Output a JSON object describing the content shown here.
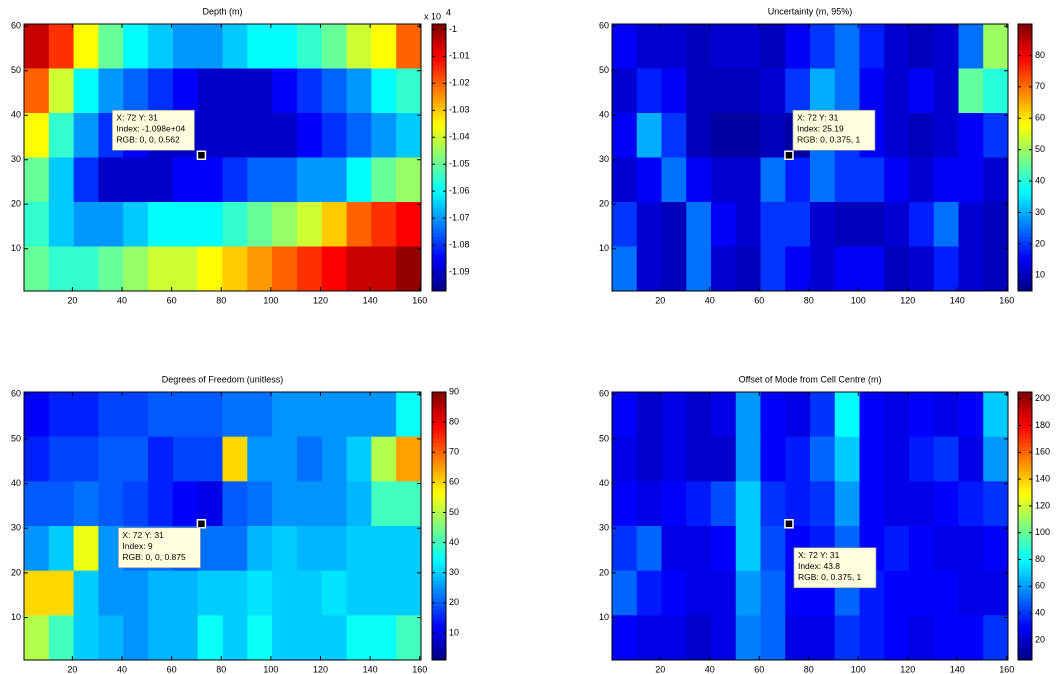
{
  "chart_data": [
    {
      "type": "heatmap",
      "title": "Depth (m)",
      "xlim": [
        0.5,
        160.5
      ],
      "ylim": [
        0.5,
        60.5
      ],
      "xticks": [
        20,
        40,
        60,
        80,
        100,
        120,
        140,
        160
      ],
      "yticks": [
        10,
        20,
        30,
        40,
        50,
        60
      ],
      "colormap": "jet",
      "clim": [
        -1.097,
        -0.998
      ],
      "colorbar": {
        "ticks": [
          -1,
          -1.01,
          -1.02,
          -1.03,
          -1.04,
          -1.05,
          -1.06,
          -1.07,
          -1.08,
          -1.09
        ],
        "multiplier": "x 10",
        "exponent": "4"
      },
      "z": [
        [
          -1.005,
          -1.015,
          -1.035,
          -1.05,
          -1.06,
          -1.065,
          -1.07,
          -1.07,
          -1.065,
          -1.06,
          -1.06,
          -1.055,
          -1.05,
          -1.04,
          -1.035,
          -1.02
        ],
        [
          -1.02,
          -1.04,
          -1.06,
          -1.07,
          -1.075,
          -1.08,
          -1.085,
          -1.09,
          -1.09,
          -1.09,
          -1.085,
          -1.08,
          -1.075,
          -1.07,
          -1.06,
          -1.055
        ],
        [
          -1.035,
          -1.055,
          -1.07,
          -1.08,
          -1.085,
          -1.09,
          -1.09,
          -1.09,
          -1.09,
          -1.09,
          -1.09,
          -1.085,
          -1.08,
          -1.075,
          -1.07,
          -1.065
        ],
        [
          -1.05,
          -1.065,
          -1.08,
          -1.09,
          -1.09,
          -1.09,
          -1.085,
          -1.085,
          -1.08,
          -1.075,
          -1.075,
          -1.07,
          -1.07,
          -1.06,
          -1.05,
          -1.045
        ],
        [
          -1.055,
          -1.065,
          -1.07,
          -1.07,
          -1.065,
          -1.06,
          -1.06,
          -1.06,
          -1.055,
          -1.05,
          -1.045,
          -1.04,
          -1.03,
          -1.02,
          -1.015,
          -1.01
        ],
        [
          -1.05,
          -1.055,
          -1.055,
          -1.05,
          -1.045,
          -1.04,
          -1.04,
          -1.035,
          -1.03,
          -1.025,
          -1.02,
          -1.015,
          -1.01,
          -1.005,
          -1.005,
          -1.0
        ]
      ],
      "datatip": {
        "x": 72,
        "y": 31,
        "lines": [
          "X: 72 Y: 31",
          "Index: -1.098e+04",
          "RGB: 0, 0, 0.562"
        ]
      }
    },
    {
      "type": "heatmap",
      "title": "Uncertainty (m, 95%)",
      "xlim": [
        0.5,
        160.5
      ],
      "ylim": [
        0.5,
        60.5
      ],
      "xticks": [
        20,
        40,
        60,
        80,
        100,
        120,
        140,
        160
      ],
      "yticks": [
        10,
        20,
        30,
        40,
        50,
        60
      ],
      "colormap": "jet",
      "clim": [
        5,
        90
      ],
      "colorbar": {
        "ticks": [
          10,
          20,
          30,
          40,
          50,
          60,
          70,
          80
        ]
      },
      "z": [
        [
          15,
          12,
          12,
          10,
          12,
          12,
          10,
          15,
          20,
          25,
          18,
          12,
          10,
          12,
          25,
          50
        ],
        [
          12,
          18,
          15,
          10,
          10,
          10,
          12,
          20,
          30,
          25,
          15,
          12,
          15,
          12,
          45,
          40
        ],
        [
          15,
          30,
          20,
          10,
          8,
          8,
          10,
          8,
          25,
          20,
          15,
          12,
          10,
          12,
          15,
          20
        ],
        [
          12,
          15,
          25,
          15,
          12,
          12,
          25,
          18,
          25,
          20,
          20,
          15,
          12,
          15,
          15,
          12
        ],
        [
          20,
          12,
          10,
          25,
          15,
          12,
          20,
          20,
          12,
          10,
          10,
          12,
          18,
          25,
          12,
          10
        ],
        [
          25,
          12,
          10,
          25,
          12,
          10,
          20,
          15,
          12,
          15,
          15,
          10,
          12,
          18,
          12,
          10
        ]
      ],
      "datatip": {
        "x": 72,
        "y": 31,
        "lines": [
          "X: 72 Y: 31",
          "Index: 25.19",
          "RGB: 0, 0.375, 1"
        ]
      }
    },
    {
      "type": "heatmap",
      "title": "Degrees of Freedom (unitless)",
      "xlim": [
        0.5,
        160.5
      ],
      "ylim": [
        0.5,
        60.5
      ],
      "xticks": [
        20,
        40,
        60,
        80,
        100,
        120,
        140,
        160
      ],
      "yticks": [
        10,
        20,
        30,
        40,
        50,
        60
      ],
      "colormap": "jet",
      "clim": [
        1,
        90
      ],
      "colorbar": {
        "ticks": [
          10,
          20,
          30,
          40,
          50,
          60,
          70,
          80,
          90
        ]
      },
      "z": [
        [
          12,
          15,
          15,
          18,
          18,
          20,
          20,
          20,
          22,
          22,
          25,
          25,
          25,
          25,
          25,
          35
        ],
        [
          15,
          18,
          18,
          20,
          20,
          15,
          18,
          18,
          60,
          25,
          25,
          22,
          25,
          30,
          50,
          65
        ],
        [
          20,
          20,
          22,
          20,
          18,
          15,
          12,
          10,
          20,
          22,
          25,
          25,
          25,
          28,
          40,
          40
        ],
        [
          25,
          30,
          55,
          25,
          22,
          22,
          20,
          22,
          22,
          28,
          30,
          28,
          28,
          30,
          30,
          30
        ],
        [
          60,
          60,
          30,
          25,
          25,
          28,
          28,
          30,
          30,
          32,
          30,
          30,
          32,
          30,
          30,
          30
        ],
        [
          50,
          40,
          30,
          28,
          25,
          28,
          28,
          35,
          30,
          35,
          30,
          30,
          30,
          35,
          35,
          40
        ]
      ],
      "datatip": {
        "x": 72,
        "y": 31,
        "lines": [
          "X: 72 Y: 31",
          "Index: 9",
          "RGB: 0, 0, 0.875"
        ]
      }
    },
    {
      "type": "heatmap",
      "title": "Offset of Mode from Cell Centre (m)",
      "xlim": [
        0.5,
        160.5
      ],
      "ylim": [
        0.5,
        60.5
      ],
      "xticks": [
        20,
        40,
        60,
        80,
        100,
        120,
        140,
        160
      ],
      "yticks": [
        10,
        20,
        30,
        40,
        50,
        60
      ],
      "colormap": "jet",
      "clim": [
        5,
        205
      ],
      "colorbar": {
        "ticks": [
          20,
          40,
          60,
          80,
          100,
          120,
          140,
          160,
          180,
          200
        ]
      },
      "z": [
        [
          30,
          20,
          25,
          20,
          25,
          60,
          30,
          25,
          40,
          80,
          30,
          25,
          30,
          25,
          30,
          70
        ],
        [
          25,
          20,
          25,
          20,
          20,
          60,
          30,
          35,
          50,
          70,
          30,
          25,
          35,
          40,
          25,
          60
        ],
        [
          30,
          25,
          30,
          35,
          45,
          70,
          40,
          35,
          40,
          60,
          30,
          25,
          25,
          30,
          35,
          40
        ],
        [
          40,
          50,
          25,
          25,
          30,
          70,
          45,
          30,
          35,
          50,
          30,
          35,
          30,
          25,
          25,
          30
        ],
        [
          50,
          35,
          30,
          25,
          25,
          60,
          50,
          30,
          30,
          50,
          35,
          30,
          30,
          30,
          25,
          25
        ],
        [
          30,
          25,
          25,
          20,
          25,
          55,
          50,
          25,
          25,
          40,
          35,
          30,
          25,
          30,
          30,
          40
        ]
      ],
      "datatip": {
        "x": 72,
        "y": 31,
        "lines": [
          "X: 72 Y: 31",
          "Index: 43.8",
          "RGB: 0, 0.375, 1"
        ]
      }
    }
  ]
}
